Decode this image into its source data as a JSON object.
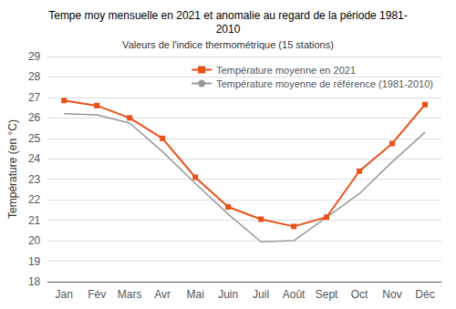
{
  "chart_data": {
    "type": "line",
    "title": "Tempe moy mensuelle en 2021 et anomalie au regard de la période 1981-\n2010",
    "subtitle": "Valeurs de l'indice thermométrique (15 stations)",
    "y_label": "Température (en °C)",
    "categories": [
      "Jan",
      "Fév",
      "Mars",
      "Avr",
      "Mai",
      "Juin",
      "Juil",
      "Août",
      "Sept",
      "Oct",
      "Nov",
      "Déc"
    ],
    "series": [
      {
        "name": "Température moyenne en 2021",
        "color": "#E8521A",
        "marker": "square",
        "values": [
          26.85,
          26.6,
          26.0,
          25.0,
          23.1,
          21.65,
          21.05,
          20.7,
          21.15,
          23.4,
          24.75,
          26.65
        ]
      },
      {
        "name": "Température moyenne de référence (1981-2010)",
        "color": "#999999",
        "marker": "none",
        "values": [
          26.2,
          26.15,
          25.75,
          24.35,
          22.8,
          21.3,
          19.95,
          20.0,
          21.15,
          22.3,
          23.85,
          25.3
        ]
      }
    ],
    "ylim": [
      18,
      29
    ],
    "yticks": [
      18,
      19,
      20,
      21,
      22,
      23,
      24,
      25,
      26,
      27,
      28,
      29
    ],
    "grid": true,
    "legend": "upper right"
  }
}
